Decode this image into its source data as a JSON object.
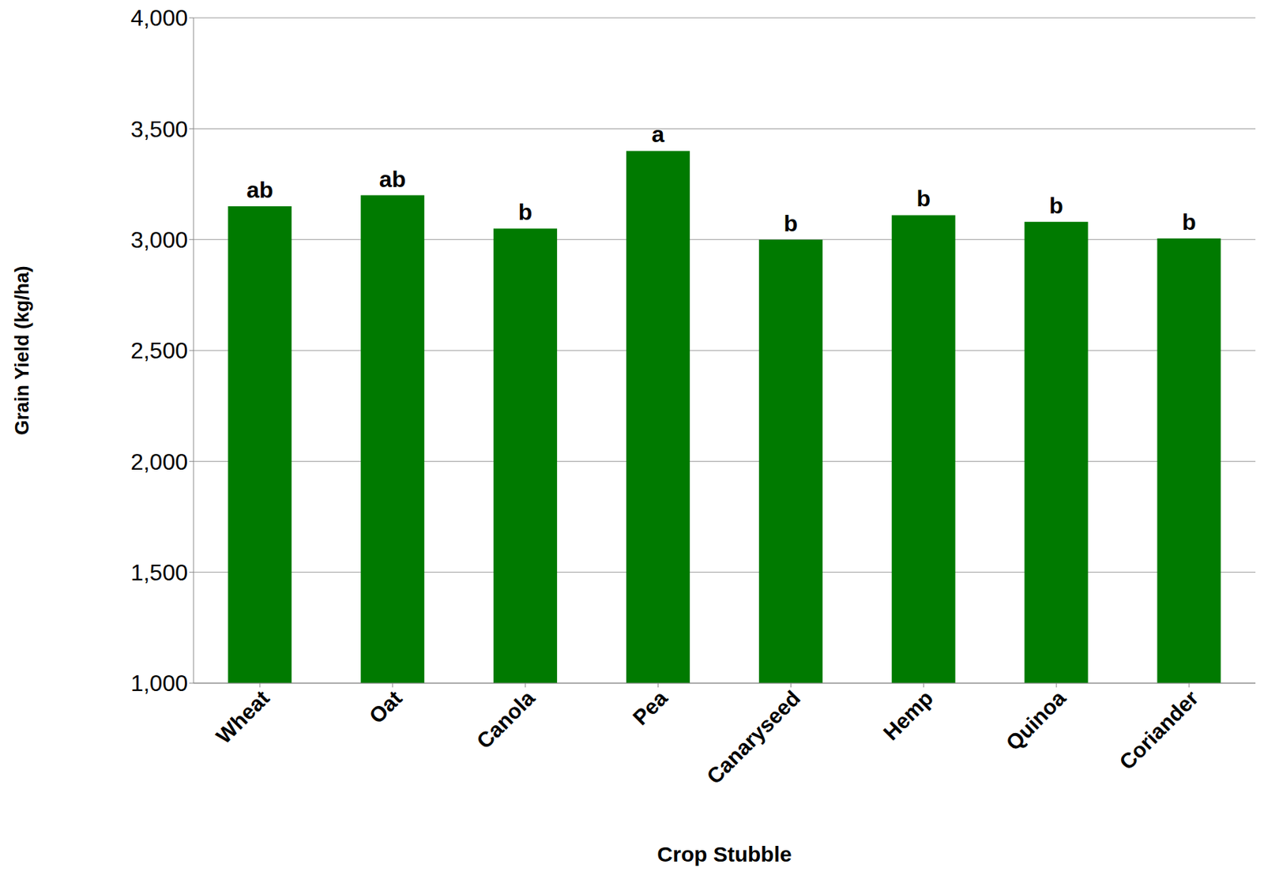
{
  "chart_data": {
    "type": "bar",
    "x_label": "Crop Stubble",
    "y_label": "Grain Yield (kg/ha)",
    "categories": [
      "Wheat",
      "Oat",
      "Canola",
      "Pea",
      "Canaryseed",
      "Hemp",
      "Quinoa",
      "Coriander"
    ],
    "values": [
      3150,
      3200,
      3050,
      3400,
      3000,
      3110,
      3080,
      3005
    ],
    "annotations": [
      "ab",
      "ab",
      "b",
      "a",
      "b",
      "b",
      "b",
      "b"
    ],
    "color": "#007a00",
    "ylim": [
      1000,
      4000
    ],
    "yticks": [
      {
        "value": 1000,
        "label": "1,000"
      },
      {
        "value": 1500,
        "label": "1,500"
      },
      {
        "value": 2000,
        "label": "2,000"
      },
      {
        "value": 2500,
        "label": "2,500"
      },
      {
        "value": 3000,
        "label": "3,000"
      },
      {
        "value": 3500,
        "label": "3,500"
      },
      {
        "value": 4000,
        "label": "4,000"
      }
    ],
    "grid": true
  }
}
